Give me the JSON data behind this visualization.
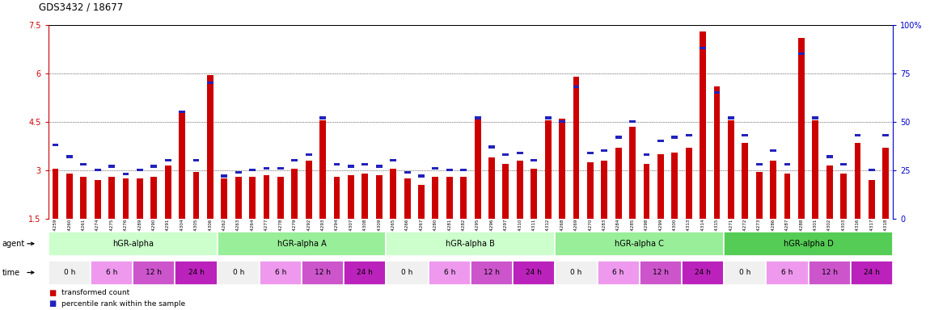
{
  "title": "GDS3432 / 18677",
  "ylim_left": [
    1.5,
    7.5
  ],
  "yticks_left": [
    1.5,
    3.0,
    4.5,
    6.0,
    7.5
  ],
  "ytick_labels_left": [
    "1.5",
    "3",
    "4.5",
    "6",
    "7.5"
  ],
  "yticks_right": [
    0,
    25,
    50,
    75,
    100
  ],
  "ytick_labels_right": [
    "0",
    "25",
    "50",
    "75",
    "100%"
  ],
  "samples": [
    "GSM154259",
    "GSM154260",
    "GSM154261",
    "GSM154274",
    "GSM154275",
    "GSM154276",
    "GSM154289",
    "GSM154290",
    "GSM154291",
    "GSM154304",
    "GSM154305",
    "GSM154306",
    "GSM154262",
    "GSM154263",
    "GSM154264",
    "GSM154277",
    "GSM154278",
    "GSM154279",
    "GSM154292",
    "GSM154293",
    "GSM154294",
    "GSM154307",
    "GSM154308",
    "GSM154309",
    "GSM154265",
    "GSM154266",
    "GSM154267",
    "GSM154280",
    "GSM154281",
    "GSM154282",
    "GSM154295",
    "GSM154296",
    "GSM154297",
    "GSM154310",
    "GSM154311",
    "GSM154312",
    "GSM154268",
    "GSM154269",
    "GSM154270",
    "GSM154283",
    "GSM154284",
    "GSM154285",
    "GSM154298",
    "GSM154299",
    "GSM154300",
    "GSM154313",
    "GSM154314",
    "GSM154315",
    "GSM154271",
    "GSM154272",
    "GSM154273",
    "GSM154286",
    "GSM154287",
    "GSM154288",
    "GSM154301",
    "GSM154302",
    "GSM154303",
    "GSM154316",
    "GSM154317",
    "GSM154318"
  ],
  "red_values": [
    3.05,
    2.9,
    2.8,
    2.7,
    2.8,
    2.75,
    2.75,
    2.8,
    3.15,
    4.8,
    2.95,
    5.95,
    2.75,
    2.8,
    2.8,
    2.85,
    2.8,
    3.05,
    3.3,
    4.55,
    2.8,
    2.85,
    2.9,
    2.85,
    3.05,
    2.75,
    2.55,
    2.8,
    2.8,
    2.8,
    4.6,
    3.4,
    3.2,
    3.3,
    3.05,
    4.55,
    4.6,
    5.9,
    3.25,
    3.3,
    3.7,
    4.35,
    3.2,
    3.5,
    3.55,
    3.7,
    7.3,
    5.6,
    4.55,
    3.85,
    2.95,
    3.3,
    2.9,
    7.1,
    4.55,
    3.15,
    2.9,
    3.85,
    2.7,
    3.7
  ],
  "blue_pct": [
    38,
    32,
    28,
    25,
    27,
    23,
    25,
    27,
    30,
    55,
    30,
    70,
    22,
    24,
    25,
    26,
    26,
    30,
    33,
    52,
    28,
    27,
    28,
    27,
    30,
    24,
    22,
    26,
    25,
    25,
    52,
    37,
    33,
    34,
    30,
    52,
    50,
    68,
    34,
    35,
    42,
    50,
    33,
    40,
    42,
    43,
    88,
    65,
    52,
    43,
    28,
    35,
    28,
    85,
    52,
    32,
    28,
    43,
    25,
    43
  ],
  "agent_groups": [
    {
      "label": "hGR-alpha",
      "start": 0,
      "end": 12,
      "color": "#ccffcc"
    },
    {
      "label": "hGR-alpha A",
      "start": 12,
      "end": 24,
      "color": "#99ee99"
    },
    {
      "label": "hGR-alpha B",
      "start": 24,
      "end": 36,
      "color": "#ccffcc"
    },
    {
      "label": "hGR-alpha C",
      "start": 36,
      "end": 48,
      "color": "#99ee99"
    },
    {
      "label": "hGR-alpha D",
      "start": 48,
      "end": 60,
      "color": "#55cc55"
    }
  ],
  "time_colors": [
    "#f0f0f0",
    "#ee99ee",
    "#cc55cc",
    "#bb22bb"
  ],
  "time_labels": [
    "0 h",
    "6 h",
    "12 h",
    "24 h"
  ],
  "bar_color_red": "#cc0000",
  "bar_color_blue": "#2222bb",
  "bg_color": "#ffffff",
  "left_tick_color": "#cc0000",
  "right_tick_color": "#0000cc"
}
